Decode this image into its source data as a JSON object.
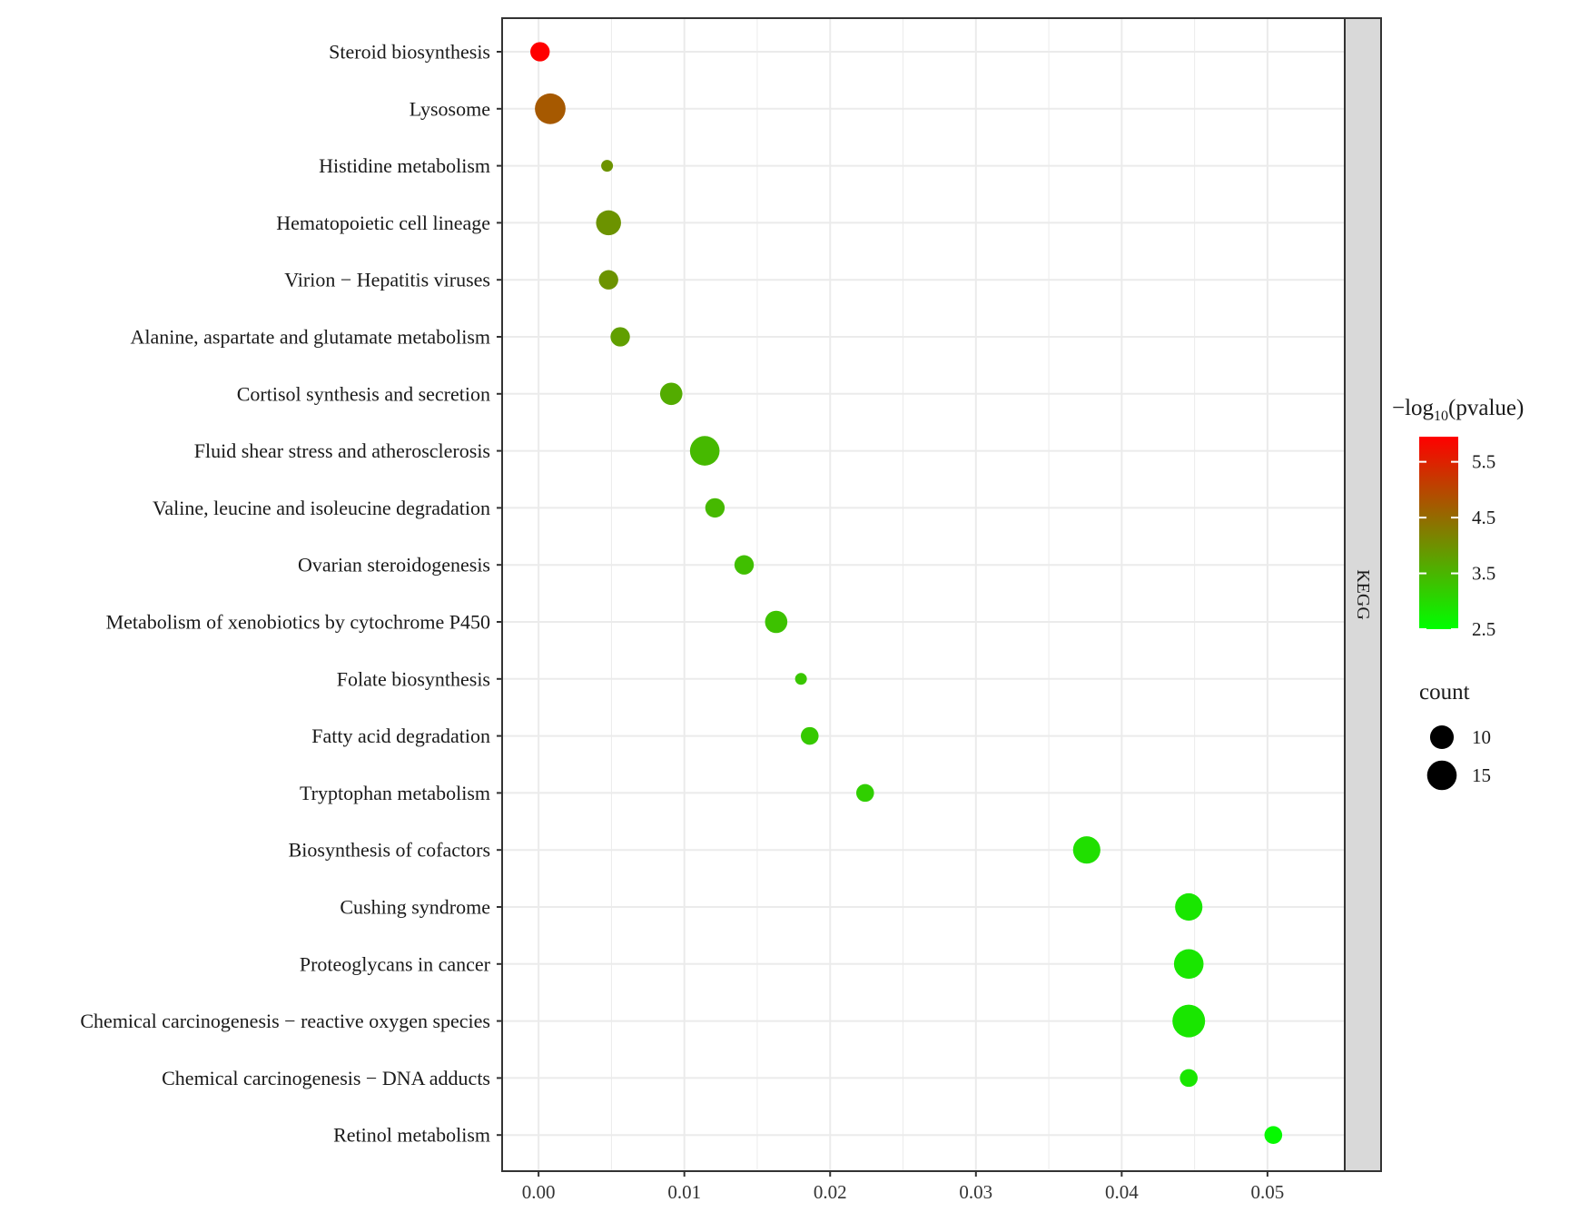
{
  "chart_data": {
    "type": "scatter",
    "facet_label": "KEGG",
    "xlim": [
      -0.0025,
      0.0553
    ],
    "x_ticks": [
      {
        "value": 0.0,
        "label": "0.00"
      },
      {
        "value": 0.01,
        "label": "0.01"
      },
      {
        "value": 0.02,
        "label": "0.02"
      },
      {
        "value": 0.03,
        "label": "0.03"
      },
      {
        "value": 0.04,
        "label": "0.04"
      },
      {
        "value": 0.05,
        "label": "0.05"
      }
    ],
    "xlabel": "",
    "ylabel": "",
    "grid": true,
    "points": [
      {
        "term": "Steroid biosynthesis",
        "x": 0.0001,
        "neglog10p": 6.5,
        "count": 7
      },
      {
        "term": "Lysosome",
        "x": 0.0008,
        "neglog10p": 5.1,
        "count": 16
      },
      {
        "term": "Histidine metabolism",
        "x": 0.0047,
        "neglog10p": 4.2,
        "count": 3
      },
      {
        "term": "Hematopoietic cell lineage",
        "x": 0.0048,
        "neglog10p": 4.2,
        "count": 11
      },
      {
        "term": "Virion − Hepatitis viruses",
        "x": 0.0048,
        "neglog10p": 4.2,
        "count": 7
      },
      {
        "term": "Alanine, aspartate and glutamate metabolism",
        "x": 0.0056,
        "neglog10p": 4.0,
        "count": 7
      },
      {
        "term": "Cortisol synthesis and secretion",
        "x": 0.0091,
        "neglog10p": 3.8,
        "count": 9
      },
      {
        "term": "Fluid shear stress and atherosclerosis",
        "x": 0.0114,
        "neglog10p": 3.6,
        "count": 15
      },
      {
        "term": "Valine, leucine and isoleucine degradation",
        "x": 0.0121,
        "neglog10p": 3.6,
        "count": 7
      },
      {
        "term": "Ovarian steroidogenesis",
        "x": 0.0141,
        "neglog10p": 3.5,
        "count": 7
      },
      {
        "term": "Metabolism of xenobiotics by cytochrome P450",
        "x": 0.0163,
        "neglog10p": 3.45,
        "count": 9
      },
      {
        "term": "Folate biosynthesis",
        "x": 0.018,
        "neglog10p": 3.4,
        "count": 3
      },
      {
        "term": "Fatty acid degradation",
        "x": 0.0186,
        "neglog10p": 3.35,
        "count": 6
      },
      {
        "term": "Tryptophan metabolism",
        "x": 0.0224,
        "neglog10p": 3.25,
        "count": 6
      },
      {
        "term": "Biosynthesis of cofactors",
        "x": 0.0376,
        "neglog10p": 3.0,
        "count": 13
      },
      {
        "term": "Cushing syndrome",
        "x": 0.0446,
        "neglog10p": 2.9,
        "count": 13
      },
      {
        "term": "Proteoglycans in cancer",
        "x": 0.0446,
        "neglog10p": 2.9,
        "count": 15
      },
      {
        "term": "Chemical carcinogenesis − reactive oxygen species",
        "x": 0.0446,
        "neglog10p": 2.9,
        "count": 18
      },
      {
        "term": "Chemical carcinogenesis − DNA adducts",
        "x": 0.0446,
        "neglog10p": 2.9,
        "count": 6
      },
      {
        "term": "Retinol metabolism",
        "x": 0.0504,
        "neglog10p": 2.6,
        "count": 6
      }
    ],
    "color_legend": {
      "title_prefix": "−log",
      "title_subscript": "10",
      "title_suffix": "(pvalue)",
      "range": [
        2.5,
        6.5
      ],
      "low_color": "#00ff00",
      "high_color": "#ff0000",
      "ticks": [
        {
          "value": 5.5,
          "label": "5.5"
        },
        {
          "value": 4.5,
          "label": "4.5"
        },
        {
          "value": 3.5,
          "label": "3.5"
        },
        {
          "value": 2.5,
          "label": "2.5"
        }
      ]
    },
    "size_legend": {
      "title": "count",
      "range": [
        3,
        18
      ],
      "entries": [
        {
          "value": 10,
          "label": "10"
        },
        {
          "value": 15,
          "label": "15"
        }
      ]
    }
  },
  "colors": {
    "panel_border": "#333333",
    "grid": "#ebebeb",
    "strip_fill": "#d9d9d9",
    "tick": "#333333",
    "legend_point": "#000000"
  }
}
